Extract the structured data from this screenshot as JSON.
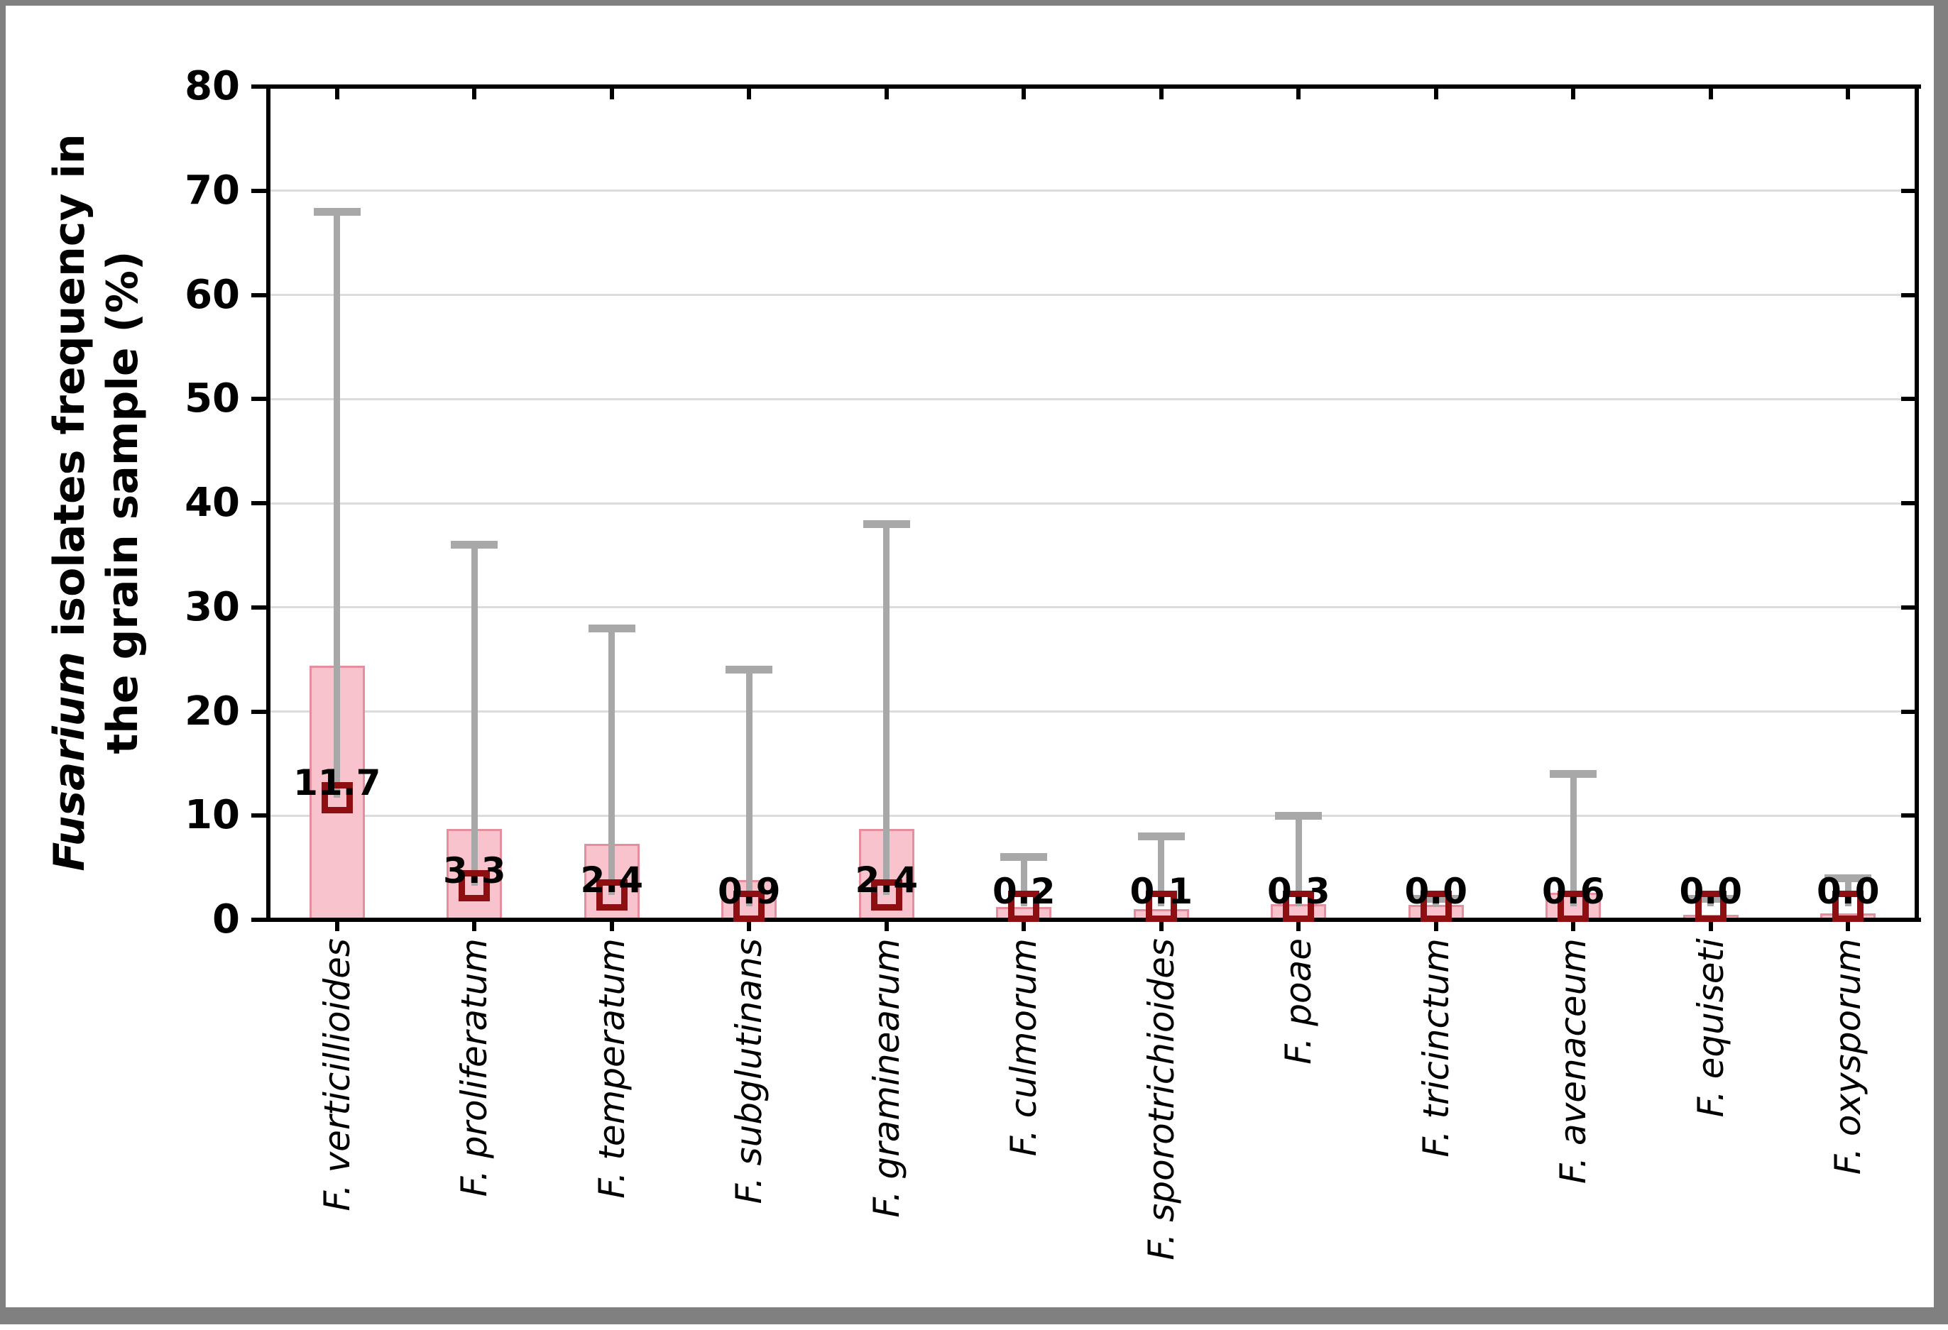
{
  "figure": {
    "background": "#ffffff",
    "border_color": "#808080"
  },
  "chart_data": {
    "type": "bar",
    "title": "",
    "ylabel": "Fusarium isolates frequency in the grain sample (%)",
    "ylabel_parts": {
      "italic": "Fusarium",
      "line1_rest": " isolates frequency in",
      "line2": "the grain sample (%)"
    },
    "xlabel": "",
    "ylim": [
      0,
      80
    ],
    "yticks": [
      0,
      10,
      20,
      30,
      40,
      50,
      60,
      70,
      80
    ],
    "grid": "horizontal",
    "legend": "none",
    "categories": [
      "F. verticillioides",
      "F. proliferatum",
      "F. temperatum",
      "F. subglutinans",
      "F. graminearum",
      "F. culmorum",
      "F. sporotrichioides",
      "F. poae",
      "F. tricinctum",
      "F. avenaceum",
      "F. equiseti",
      "F. oxysporum"
    ],
    "series": [
      {
        "name": "mean (marker + label)",
        "values": [
          11.7,
          3.3,
          2.4,
          0.9,
          2.4,
          0.2,
          0.1,
          0.3,
          0.0,
          0.6,
          0.0,
          0.0
        ]
      },
      {
        "name": "bar top",
        "values": [
          24.4,
          8.7,
          7.3,
          3.8,
          8.7,
          1.2,
          1.0,
          1.5,
          1.4,
          2.6,
          0.5,
          0.6
        ]
      },
      {
        "name": "upper whisker (max)",
        "values": [
          68,
          36,
          28,
          24,
          38,
          6,
          8,
          10,
          2,
          14,
          2,
          4
        ]
      }
    ],
    "value_labels": [
      "11.7",
      "3.3",
      "2.4",
      "0.9",
      "2.4",
      "0.2",
      "0.1",
      "0.3",
      "0.0",
      "0.6",
      "0.0",
      "0.0"
    ],
    "colors": {
      "bar_fill": "#f9c3cd",
      "bar_border": "#e58f9e",
      "marker": "#8e0f12",
      "whisker": "#a8a8a8",
      "gridline": "#dcdcdc",
      "axis": "#000000",
      "text": "#000000"
    }
  }
}
